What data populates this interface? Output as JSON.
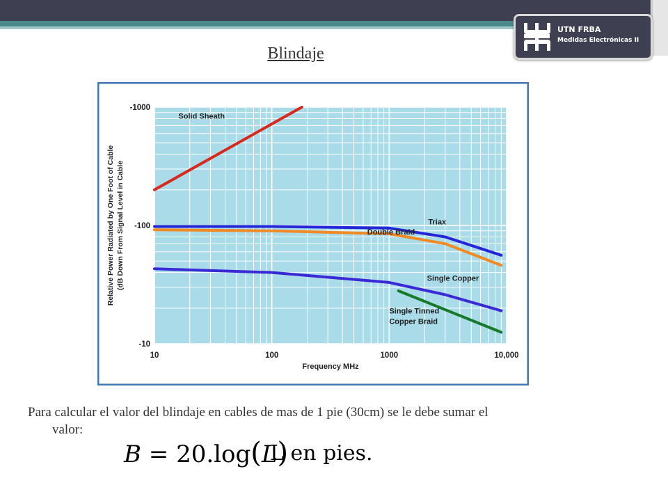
{
  "slide": {
    "title": "Blindaje",
    "logo": {
      "line1": "UTN FRBA",
      "line2": "Medidas Electrónicas II"
    },
    "caption_line1": "Para calcular el valor del blindaje en cables de mas de 1 pie (30cm) se le debe sumar el",
    "caption_line2": "valor:",
    "formula": {
      "lhs": "B",
      "eq": " = 20.log",
      "arg": "L",
      "unit": "L en pies."
    }
  },
  "chart_data": {
    "type": "line",
    "title": "",
    "xlabel": "Frequency MHz",
    "ylabel_line1": "Relative Power Radiated by One Foot of Cable",
    "ylabel_line2": "(dB Down From Signal Level in Cable",
    "x_scale": "log",
    "y_scale": "log",
    "xlim": [
      10,
      10000
    ],
    "ylim": [
      -10,
      -1000
    ],
    "x_ticks": [
      "10",
      "100",
      "1000",
      "10,000"
    ],
    "y_ticks": [
      "-1000",
      "-100",
      "-10"
    ],
    "grid": true,
    "colors": {
      "plot_bg": "#a9dbe9",
      "grid": "#ffffff",
      "frame": "#3f79b5"
    },
    "series": [
      {
        "name": "Solid Sheath",
        "color": "#d9281e",
        "x": [
          10,
          180
        ],
        "y": [
          -200,
          -1000
        ]
      },
      {
        "name": "Triax",
        "color": "#2626d9",
        "x": [
          10,
          100,
          1000,
          3000,
          9000
        ],
        "y": [
          -98,
          -98,
          -95,
          -80,
          -56
        ]
      },
      {
        "name": "Double Braid",
        "color": "#f08a24",
        "x": [
          10,
          100,
          1000,
          3000,
          9000
        ],
        "y": [
          -92,
          -90,
          -85,
          -70,
          -46
        ]
      },
      {
        "name": "Single Copper",
        "color": "#3a2ad6",
        "x": [
          10,
          100,
          1000,
          3000,
          9000
        ],
        "y": [
          -43,
          -40,
          -33,
          -26,
          -19
        ]
      },
      {
        "name": "Single Tinned Copper Braid",
        "color": "#167a2a",
        "x": [
          1200,
          9000
        ],
        "y": [
          -28,
          -12.5
        ]
      }
    ],
    "labels": [
      {
        "text": [
          "Solid Sheath"
        ],
        "x": 16,
        "y": -800
      },
      {
        "text": [
          "Triax"
        ],
        "x": 2150,
        "y": -102
      },
      {
        "text": [
          "Double Braid"
        ],
        "x": 650,
        "y": -84
      },
      {
        "text": [
          "Single Copper"
        ],
        "x": 2100,
        "y": -34
      },
      {
        "text": [
          "Single Tinned",
          "Copper Braid"
        ],
        "x": 1000,
        "y": -18
      }
    ]
  }
}
